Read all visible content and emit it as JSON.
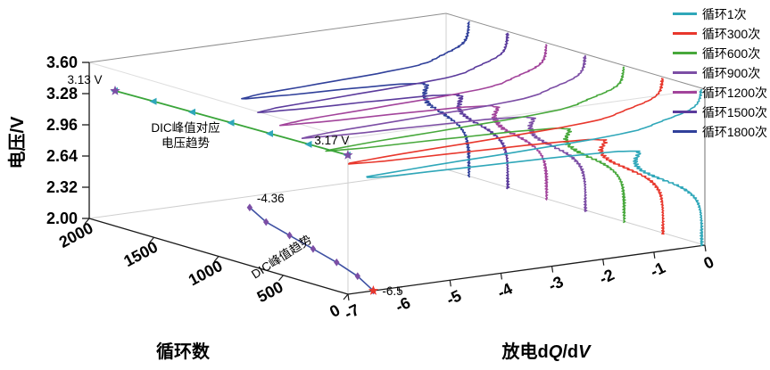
{
  "colors": {
    "axis": "#1a1a1a",
    "box_edge": "#8f8f8f",
    "hidden_edge": "#cfcfcf",
    "voltage_trend_line": "#3aa53a",
    "voltage_trend_marker": "#2fa7b9",
    "voltage_trend_star": "#7c4ea5",
    "peak_trend_line": "#3f51a3",
    "peak_trend_marker": "#7c4ea5",
    "peak_trend_star": "#e8372c",
    "annotation_text": "#000000"
  },
  "axes": {
    "voltage": {
      "title": "电压/V",
      "min": 2.0,
      "max": 3.6,
      "ticks": [
        3.6,
        3.28,
        2.96,
        2.64,
        2.32,
        2.0
      ],
      "tick_labels": [
        "3.60",
        "3.28",
        "2.96",
        "2.64",
        "2.32",
        "2.00"
      ]
    },
    "cycle": {
      "title": "循环数",
      "min": 0,
      "max": 2000,
      "ticks": [
        2000,
        1500,
        1000,
        500,
        0
      ],
      "tick_labels": [
        "2000",
        "1500",
        "1000",
        "500",
        "0"
      ]
    },
    "dqdv": {
      "title_parts": [
        {
          "t": "放电d",
          "i": false
        },
        {
          "t": "Q",
          "i": true
        },
        {
          "t": "/d",
          "i": false
        },
        {
          "t": "V",
          "i": true
        }
      ],
      "min": -7,
      "max": 0,
      "ticks": [
        -7,
        -6,
        -5,
        -4,
        -3,
        -2,
        -1,
        0
      ],
      "tick_labels": [
        "-7",
        "-6",
        "-5",
        "-4",
        "-3",
        "-2",
        "-1",
        "0"
      ]
    }
  },
  "legend": {
    "items": [
      {
        "label": "循环1次",
        "color": "#2fa7b9"
      },
      {
        "label": "循环300次",
        "color": "#e8372c"
      },
      {
        "label": "循环600次",
        "color": "#47a83b"
      },
      {
        "label": "循环900次",
        "color": "#7c4ea5"
      },
      {
        "label": "循环1200次",
        "color": "#a2449b"
      },
      {
        "label": "循环1500次",
        "color": "#5b3b9c"
      },
      {
        "label": "循环1800次",
        "color": "#30409a"
      }
    ]
  },
  "chart_data": {
    "type": "line",
    "projection": "3d-waterfall",
    "xlabel_depth": "循环数",
    "xlabel_front": "放电dQ/dV",
    "ylabel": "电压/V",
    "series": [
      {
        "name": "循环1次",
        "cycle": 1,
        "color": "#2fa7b9",
        "peak_voltage_V": 3.17,
        "peak_dqdv": -6.5
      },
      {
        "name": "循环300次",
        "cycle": 300,
        "color": "#e8372c",
        "peak_voltage_V": 3.165,
        "peak_dqdv": -6.05
      },
      {
        "name": "循环600次",
        "cycle": 600,
        "color": "#47a83b",
        "peak_voltage_V": 3.158,
        "peak_dqdv": -5.7
      },
      {
        "name": "循环900次",
        "cycle": 900,
        "color": "#7c4ea5",
        "peak_voltage_V": 3.152,
        "peak_dqdv": -5.4
      },
      {
        "name": "循环1200次",
        "cycle": 1200,
        "color": "#a2449b",
        "peak_voltage_V": 3.145,
        "peak_dqdv": -5.1
      },
      {
        "name": "循环1500次",
        "cycle": 1500,
        "color": "#5b3b9c",
        "peak_voltage_V": 3.138,
        "peak_dqdv": -4.8
      },
      {
        "name": "循环1800次",
        "cycle": 1800,
        "color": "#30409a",
        "peak_voltage_V": 3.13,
        "peak_dqdv": -4.36
      }
    ],
    "voltage_trend": {
      "label_lines": [
        "DIC峰值对应",
        "电压趋势"
      ],
      "start_annotation": "3.17 V",
      "end_annotation": "3.13 V",
      "points": [
        {
          "cycle": 1,
          "voltage": 3.17
        },
        {
          "cycle": 300,
          "voltage": 3.165
        },
        {
          "cycle": 600,
          "voltage": 3.158
        },
        {
          "cycle": 900,
          "voltage": 3.152
        },
        {
          "cycle": 1200,
          "voltage": 3.145
        },
        {
          "cycle": 1500,
          "voltage": 3.138
        },
        {
          "cycle": 1800,
          "voltage": 3.13
        }
      ]
    },
    "peak_trend": {
      "label": "DIC峰值趋势",
      "start_annotation": "-6.5",
      "end_annotation": "-4.36",
      "points": [
        {
          "cycle": 1,
          "dqdv": -6.5
        },
        {
          "cycle": 300,
          "dqdv": -6.05
        },
        {
          "cycle": 600,
          "dqdv": -5.7
        },
        {
          "cycle": 900,
          "dqdv": -5.4
        },
        {
          "cycle": 1200,
          "dqdv": -5.1
        },
        {
          "cycle": 1500,
          "dqdv": -4.8
        },
        {
          "cycle": 1800,
          "dqdv": -4.36
        }
      ]
    }
  }
}
